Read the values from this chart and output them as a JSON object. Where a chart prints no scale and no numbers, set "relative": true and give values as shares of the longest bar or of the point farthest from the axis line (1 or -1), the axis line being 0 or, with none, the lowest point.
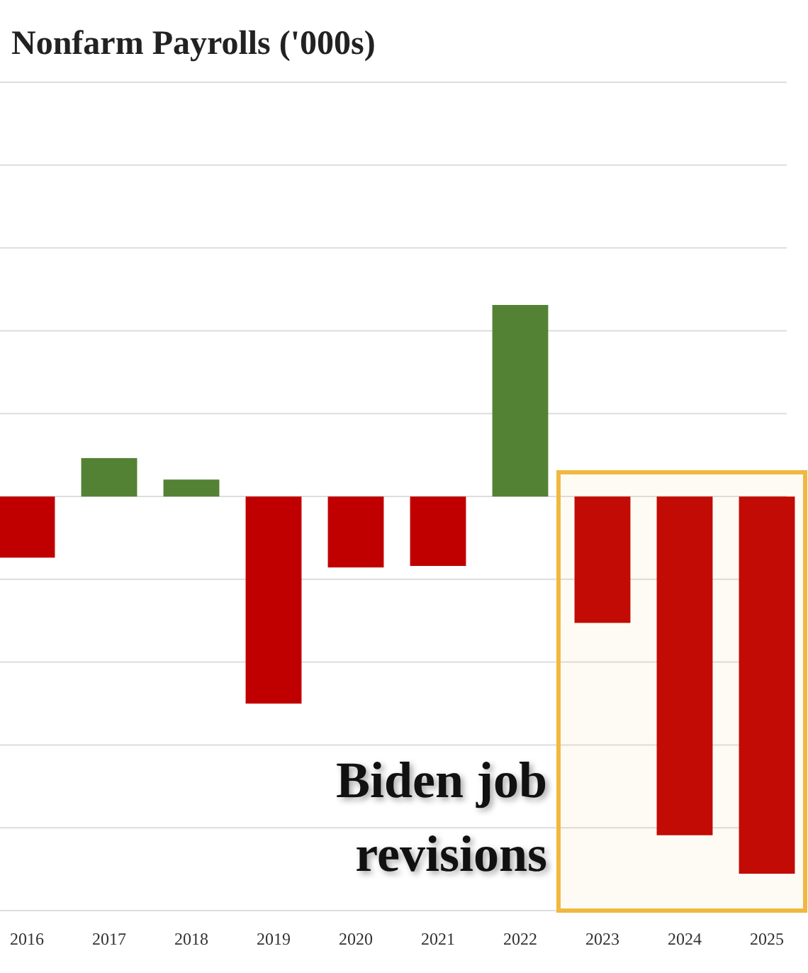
{
  "chart_data": {
    "type": "bar",
    "title": "Nonfarm Payrolls ('000s)",
    "relative": true,
    "grid": "y",
    "categories": [
      "2016",
      "2017",
      "2018",
      "2019",
      "2020",
      "2021",
      "2022",
      "2023",
      "2024",
      "2025"
    ],
    "values": [
      -0.162,
      0.102,
      0.045,
      -0.549,
      -0.188,
      -0.184,
      0.508,
      -0.335,
      -0.898,
      -1
    ],
    "colors": [
      "#c00000",
      "#548235",
      "#548235",
      "#c00000",
      "#c00000",
      "#c00000",
      "#548235",
      "#c00000",
      "#c00000",
      "#c00000"
    ],
    "bands": [
      {
        "axis": "x",
        "from": "2023",
        "to": "2025",
        "label": "Biden job revisions",
        "color": "#f0b840"
      }
    ]
  }
}
